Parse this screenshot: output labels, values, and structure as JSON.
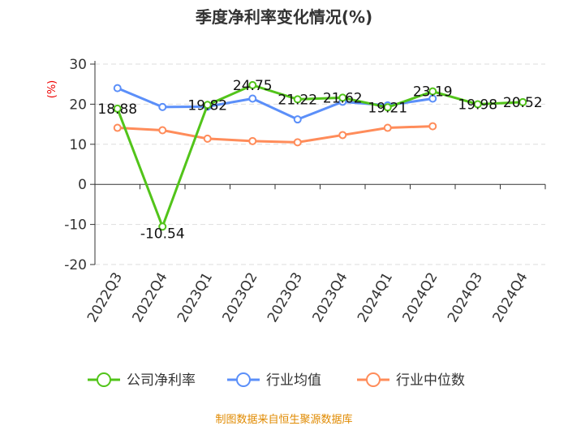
{
  "chart_data": {
    "type": "line",
    "title": "季度净利率变化情况(%)",
    "ylabel": "(%)",
    "ylim": [
      -20,
      30
    ],
    "yticks": [
      30,
      20,
      10,
      0,
      -10,
      -20
    ],
    "grid": true,
    "legend_position": "bottom",
    "categories": [
      "2022Q3",
      "2022Q4",
      "2023Q1",
      "2023Q2",
      "2023Q3",
      "2023Q4",
      "2024Q1",
      "2024Q2",
      "2024Q3",
      "2024Q4"
    ],
    "series": [
      {
        "name": "公司净利率",
        "color": "#52c41a",
        "values": [
          18.88,
          -10.54,
          19.82,
          24.75,
          21.22,
          21.62,
          19.21,
          23.19,
          19.98,
          20.52
        ],
        "labels": [
          "18.88",
          "-10.54",
          "19.82",
          "24.75",
          "21.22",
          "21.62",
          "19.21",
          "23.19",
          "19.98",
          "20.52"
        ]
      },
      {
        "name": "行业均值",
        "color": "#5b8ff9",
        "values": [
          24.0,
          19.3,
          19.4,
          21.4,
          16.2,
          20.6,
          19.7,
          21.4,
          null,
          null
        ]
      },
      {
        "name": "行业中位数",
        "color": "#ff8c5a",
        "values": [
          14.1,
          13.5,
          11.4,
          10.8,
          10.5,
          12.3,
          14.1,
          14.5,
          null,
          null
        ]
      }
    ]
  },
  "source": "制图数据来自恒生聚源数据库"
}
